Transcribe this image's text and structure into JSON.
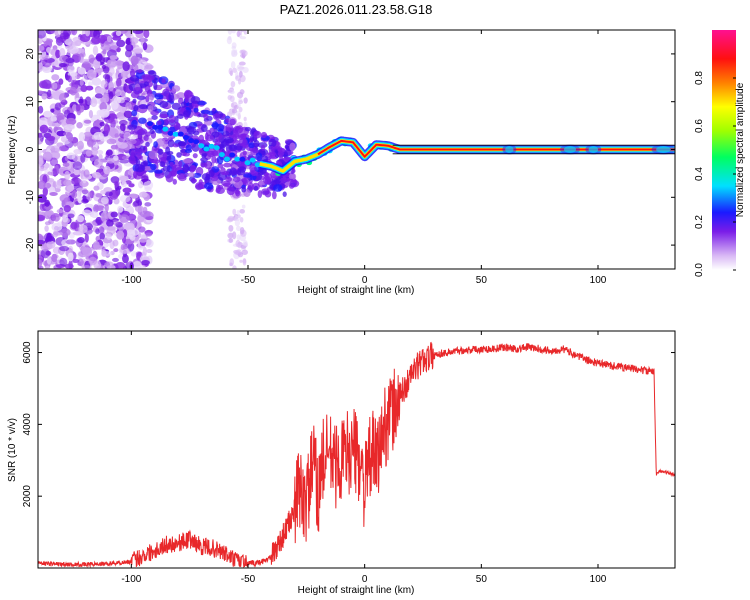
{
  "title": "PAZ1.2026.011.23.58.G18",
  "chart_data": [
    {
      "type": "heatmap",
      "xlabel": "Height of straight line (km)",
      "ylabel": "Frequency (Hz)",
      "xlim": [
        -140,
        133
      ],
      "ylim": [
        -25,
        25
      ],
      "xticks": [
        -100,
        -50,
        0,
        50,
        100
      ],
      "xtick_labels": [
        "-100",
        "-50",
        "0",
        "50",
        "100"
      ],
      "yticks": [
        -20,
        -10,
        0,
        10,
        20
      ],
      "ytick_labels": [
        "-20",
        "-10",
        "0",
        "10",
        "20"
      ],
      "colorbar": {
        "label": "Normalized spectral amplitude",
        "range": [
          0,
          1
        ],
        "ticks": [
          0,
          0.2,
          0.4,
          0.6,
          0.8
        ],
        "tick_labels": [
          "0.0",
          "0.2",
          "0.4",
          "0.6",
          "0.8"
        ]
      },
      "ridge": {
        "height_km": [
          -95,
          -90,
          -85,
          -80,
          -75,
          -70,
          -65,
          -60,
          -55,
          -50,
          -45,
          -40,
          -35,
          -30,
          -25,
          -20,
          -15,
          -10,
          -5,
          0,
          5,
          10,
          15,
          50,
          100,
          133
        ],
        "frequency_hz": [
          6,
          5,
          4,
          3,
          2,
          1,
          0,
          -1,
          -2,
          -2.5,
          -3,
          -3.5,
          -4.5,
          -2.5,
          -2,
          -1,
          0.5,
          1.8,
          1.5,
          -1.5,
          1,
          0.8,
          0,
          0,
          0,
          0
        ]
      }
    },
    {
      "type": "line",
      "xlabel": "Height of straight line (km)",
      "ylabel": "SNR (10 * v/v)",
      "xlim": [
        -140,
        133
      ],
      "ylim": [
        0,
        6600
      ],
      "xticks": [
        -100,
        -50,
        0,
        50,
        100
      ],
      "xtick_labels": [
        "-100",
        "-50",
        "0",
        "50",
        "100"
      ],
      "yticks": [
        2000,
        4000,
        6000
      ],
      "ytick_labels": [
        "2000",
        "4000",
        "6000"
      ],
      "series": [
        {
          "name": "SNR",
          "color": "#e8282a",
          "x": [
            -140,
            -130,
            -120,
            -110,
            -100,
            -95,
            -90,
            -85,
            -80,
            -75,
            -70,
            -65,
            -60,
            -55,
            -50,
            -45,
            -40,
            -35,
            -30,
            -28,
            -25,
            -22,
            -20,
            -18,
            -15,
            -12,
            -10,
            -8,
            -5,
            -2,
            0,
            3,
            5,
            8,
            10,
            12,
            15,
            18,
            20,
            25,
            30,
            35,
            40,
            45,
            50,
            55,
            60,
            65,
            70,
            75,
            80,
            85,
            90,
            95,
            100,
            105,
            110,
            115,
            120,
            124,
            125,
            126,
            130,
            133
          ],
          "y": [
            150,
            100,
            100,
            120,
            180,
            350,
            500,
            650,
            700,
            800,
            600,
            550,
            400,
            200,
            120,
            150,
            300,
            900,
            1600,
            2200,
            1800,
            3000,
            2000,
            3000,
            3200,
            2800,
            3000,
            3200,
            3300,
            3000,
            2200,
            3300,
            2900,
            3800,
            4200,
            4300,
            4800,
            5100,
            5400,
            5800,
            5950,
            6000,
            6050,
            6080,
            6100,
            6100,
            6150,
            6100,
            6150,
            6100,
            6050,
            6100,
            5950,
            5800,
            5700,
            5650,
            5600,
            5550,
            5500,
            5450,
            2600,
            2700,
            2650,
            2600
          ]
        }
      ]
    }
  ]
}
